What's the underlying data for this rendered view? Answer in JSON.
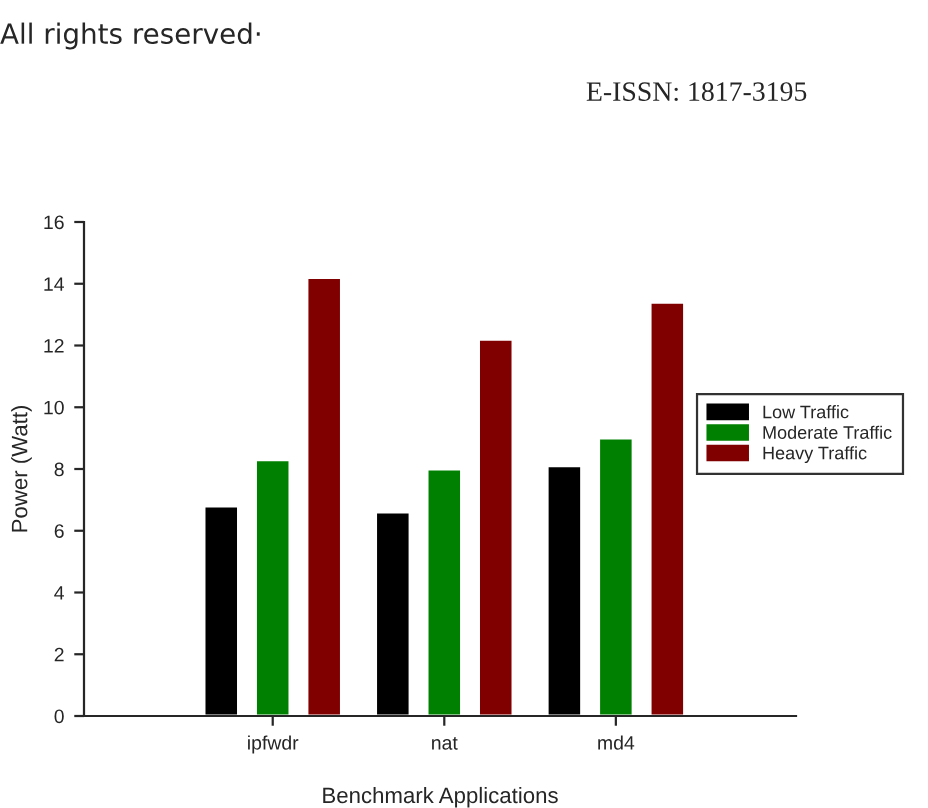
{
  "chart_data": {
    "type": "bar",
    "xlabel": "Benchmark Applications",
    "ylabel": "Power (Watt)",
    "categories": [
      "ipfwdr",
      "nat",
      "md4"
    ],
    "series": [
      {
        "name": "Low Traffic",
        "color": "#000000",
        "values": [
          6.8,
          6.6,
          8.1
        ]
      },
      {
        "name": "Moderate Traffic",
        "color": "#008000",
        "values": [
          8.3,
          8.0,
          9.0
        ]
      },
      {
        "name": "Heavy Traffic",
        "color": "#800000",
        "values": [
          14.2,
          12.2,
          13.4
        ]
      }
    ],
    "ylim": [
      0,
      16
    ],
    "yticks": [
      0,
      2,
      4,
      6,
      8,
      10,
      12,
      14,
      16
    ],
    "grid": false,
    "legend": "right",
    "annotations": [
      "All rights reserved·",
      "E-ISSN: 1817-3195"
    ]
  }
}
